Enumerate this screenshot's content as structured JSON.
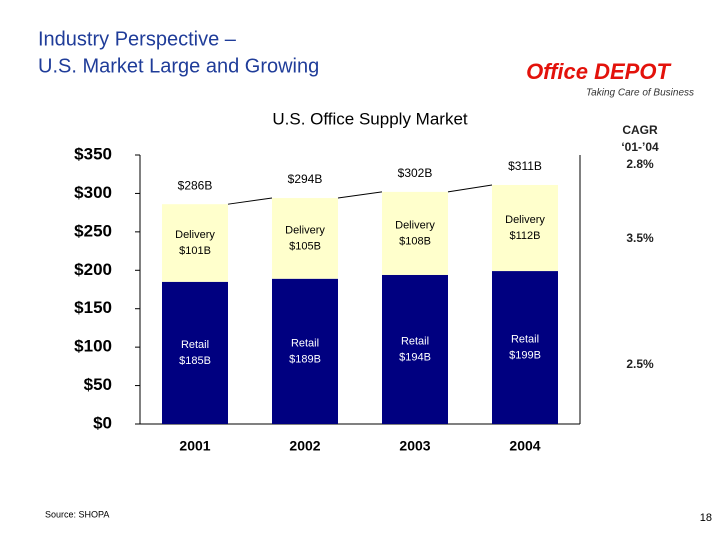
{
  "slide": {
    "title_line1": "Industry Perspective –",
    "title_line2": "U.S. Market Large and Growing",
    "logo": "Office DEPOT",
    "tagline": "Taking Care of Business",
    "source": "Source: SHOPA",
    "page": "18"
  },
  "cagr": {
    "title": "CAGR",
    "period": "‘01-’04",
    "total": "2.8%",
    "delivery": "3.5%",
    "retail": "2.5%"
  },
  "chart_data": {
    "type": "stacked-bar",
    "title": "U.S. Office Supply Market",
    "categories": [
      "2001",
      "2002",
      "2003",
      "2004"
    ],
    "series": [
      {
        "name": "Retail",
        "color": "#000080",
        "values": [
          185,
          189,
          194,
          199
        ],
        "value_labels": [
          "$185B",
          "$189B",
          "$194B",
          "$199B"
        ]
      },
      {
        "name": "Delivery",
        "color": "#ffffcc",
        "values": [
          101,
          105,
          108,
          112
        ],
        "value_labels": [
          "$101B",
          "$105B",
          "$108B",
          "$112B"
        ]
      }
    ],
    "totals": {
      "values": [
        286,
        294,
        302,
        311
      ],
      "value_labels": [
        "$286B",
        "$294B",
        "$302B",
        "$311B"
      ]
    },
    "ylim": [
      0,
      350
    ],
    "yticks": [
      {
        "value": 0,
        "label": "$0"
      },
      {
        "value": 50,
        "label": "$50"
      },
      {
        "value": 100,
        "label": "$100"
      },
      {
        "value": 150,
        "label": "$150"
      },
      {
        "value": 200,
        "label": "$200"
      },
      {
        "value": 250,
        "label": "$250"
      },
      {
        "value": 300,
        "label": "$300"
      },
      {
        "value": 350,
        "label": "$350"
      }
    ],
    "grid": false
  }
}
